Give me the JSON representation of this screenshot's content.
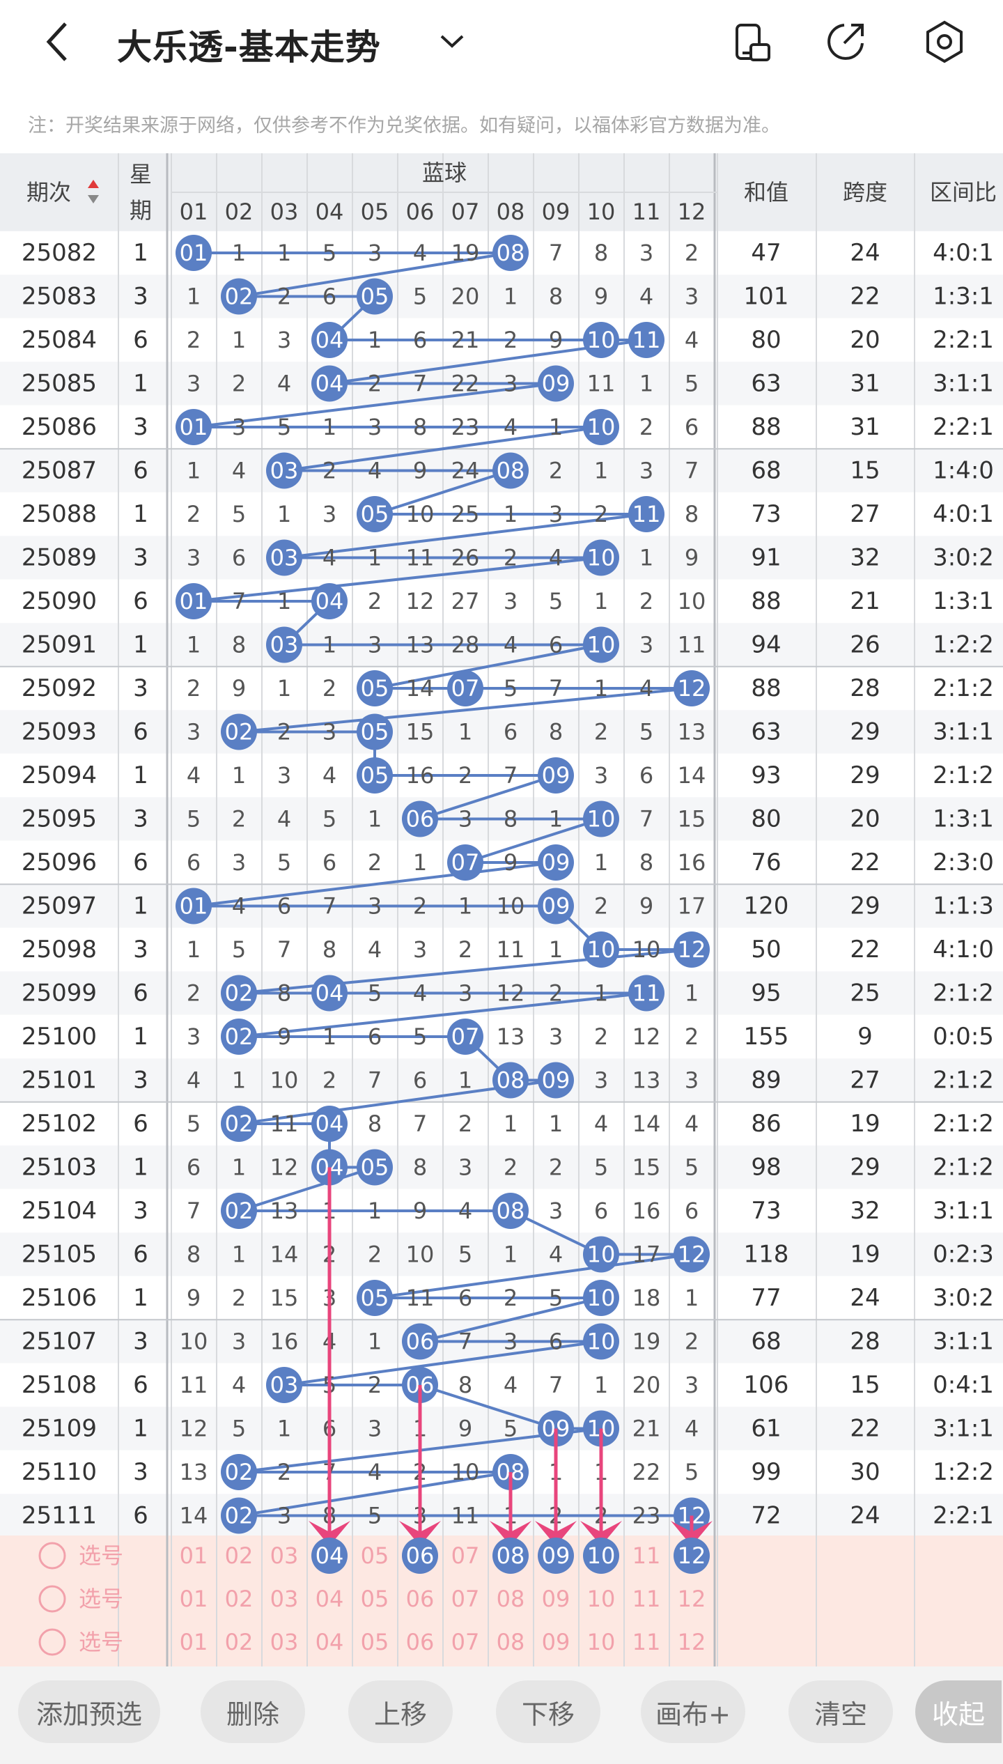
{
  "header": {
    "title": "大乐透-基本走势",
    "back_icon": "back-arrow-icon",
    "dropdown_icon": "chevron-down-icon",
    "icons": [
      "phone-rotate-icon",
      "share-icon",
      "settings-icon"
    ]
  },
  "notice": "注：开奖结果来源于网络，仅供参考不作为兑奖依据。如有疑问，以福体彩官方数据为准。",
  "columns": {
    "period": "期次",
    "weekday": "星期",
    "blue": "蓝球",
    "blue_numbers": [
      "01",
      "02",
      "03",
      "04",
      "05",
      "06",
      "07",
      "08",
      "09",
      "10",
      "11",
      "12"
    ],
    "sum": "和值",
    "span": "跨度",
    "ratio": "区间比"
  },
  "rows": [
    {
      "period": "25082",
      "week": "1",
      "c": [
        "01",
        "1",
        "1",
        "5",
        "3",
        "4",
        "19",
        "08",
        "7",
        "8",
        "3",
        "2"
      ],
      "sum": "47",
      "span": "24",
      "ratio": "4:0:1"
    },
    {
      "period": "25083",
      "week": "3",
      "c": [
        "1",
        "02",
        "2",
        "6",
        "05",
        "5",
        "20",
        "1",
        "8",
        "9",
        "4",
        "3"
      ],
      "sum": "101",
      "span": "22",
      "ratio": "1:3:1"
    },
    {
      "period": "25084",
      "week": "6",
      "c": [
        "2",
        "1",
        "3",
        "04",
        "1",
        "6",
        "21",
        "2",
        "9",
        "10",
        "11",
        "4"
      ],
      "sum": "80",
      "span": "20",
      "ratio": "2:2:1"
    },
    {
      "period": "25085",
      "week": "1",
      "c": [
        "3",
        "2",
        "4",
        "04",
        "2",
        "7",
        "22",
        "3",
        "09",
        "11",
        "1",
        "5"
      ],
      "sum": "63",
      "span": "31",
      "ratio": "3:1:1"
    },
    {
      "period": "25086",
      "week": "3",
      "c": [
        "01",
        "3",
        "5",
        "1",
        "3",
        "8",
        "23",
        "4",
        "1",
        "10",
        "2",
        "6"
      ],
      "sum": "88",
      "span": "31",
      "ratio": "2:2:1"
    },
    {
      "period": "25087",
      "week": "6",
      "c": [
        "1",
        "4",
        "03",
        "2",
        "4",
        "9",
        "24",
        "08",
        "2",
        "1",
        "3",
        "7"
      ],
      "sum": "68",
      "span": "15",
      "ratio": "1:4:0"
    },
    {
      "period": "25088",
      "week": "1",
      "c": [
        "2",
        "5",
        "1",
        "3",
        "05",
        "10",
        "25",
        "1",
        "3",
        "2",
        "11",
        "8"
      ],
      "sum": "73",
      "span": "27",
      "ratio": "4:0:1"
    },
    {
      "period": "25089",
      "week": "3",
      "c": [
        "3",
        "6",
        "03",
        "4",
        "1",
        "11",
        "26",
        "2",
        "4",
        "10",
        "1",
        "9"
      ],
      "sum": "91",
      "span": "32",
      "ratio": "3:0:2"
    },
    {
      "period": "25090",
      "week": "6",
      "c": [
        "01",
        "7",
        "1",
        "04",
        "2",
        "12",
        "27",
        "3",
        "5",
        "1",
        "2",
        "10"
      ],
      "sum": "88",
      "span": "21",
      "ratio": "1:3:1"
    },
    {
      "period": "25091",
      "week": "1",
      "c": [
        "1",
        "8",
        "03",
        "1",
        "3",
        "13",
        "28",
        "4",
        "6",
        "10",
        "3",
        "11"
      ],
      "sum": "94",
      "span": "26",
      "ratio": "1:2:2"
    },
    {
      "period": "25092",
      "week": "3",
      "c": [
        "2",
        "9",
        "1",
        "2",
        "05",
        "14",
        "07",
        "5",
        "7",
        "1",
        "4",
        "12"
      ],
      "sum": "88",
      "span": "28",
      "ratio": "2:1:2"
    },
    {
      "period": "25093",
      "week": "6",
      "c": [
        "3",
        "02",
        "2",
        "3",
        "05",
        "15",
        "1",
        "6",
        "8",
        "2",
        "5",
        "13"
      ],
      "sum": "63",
      "span": "29",
      "ratio": "3:1:1"
    },
    {
      "period": "25094",
      "week": "1",
      "c": [
        "4",
        "1",
        "3",
        "4",
        "05",
        "16",
        "2",
        "7",
        "09",
        "3",
        "6",
        "14"
      ],
      "sum": "93",
      "span": "29",
      "ratio": "2:1:2"
    },
    {
      "period": "25095",
      "week": "3",
      "c": [
        "5",
        "2",
        "4",
        "5",
        "1",
        "06",
        "3",
        "8",
        "1",
        "10",
        "7",
        "15"
      ],
      "sum": "80",
      "span": "20",
      "ratio": "1:3:1"
    },
    {
      "period": "25096",
      "week": "6",
      "c": [
        "6",
        "3",
        "5",
        "6",
        "2",
        "1",
        "07",
        "9",
        "09",
        "1",
        "8",
        "16"
      ],
      "sum": "76",
      "span": "22",
      "ratio": "2:3:0"
    },
    {
      "period": "25097",
      "week": "1",
      "c": [
        "01",
        "4",
        "6",
        "7",
        "3",
        "2",
        "1",
        "10",
        "09",
        "2",
        "9",
        "17"
      ],
      "sum": "120",
      "span": "29",
      "ratio": "1:1:3"
    },
    {
      "period": "25098",
      "week": "3",
      "c": [
        "1",
        "5",
        "7",
        "8",
        "4",
        "3",
        "2",
        "11",
        "1",
        "10",
        "10",
        "12"
      ],
      "sum": "50",
      "span": "22",
      "ratio": "4:1:0"
    },
    {
      "period": "25099",
      "week": "6",
      "c": [
        "2",
        "02",
        "8",
        "04",
        "5",
        "4",
        "3",
        "12",
        "2",
        "1",
        "11",
        "1"
      ],
      "sum": "95",
      "span": "25",
      "ratio": "2:1:2"
    },
    {
      "period": "25100",
      "week": "1",
      "c": [
        "3",
        "02",
        "9",
        "1",
        "6",
        "5",
        "07",
        "13",
        "3",
        "2",
        "12",
        "2"
      ],
      "sum": "155",
      "span": "9",
      "ratio": "0:0:5"
    },
    {
      "period": "25101",
      "week": "3",
      "c": [
        "4",
        "1",
        "10",
        "2",
        "7",
        "6",
        "1",
        "08",
        "09",
        "3",
        "13",
        "3"
      ],
      "sum": "89",
      "span": "27",
      "ratio": "2:1:2"
    },
    {
      "period": "25102",
      "week": "6",
      "c": [
        "5",
        "02",
        "11",
        "04",
        "8",
        "7",
        "2",
        "1",
        "1",
        "4",
        "14",
        "4"
      ],
      "sum": "86",
      "span": "19",
      "ratio": "2:1:2"
    },
    {
      "period": "25103",
      "week": "1",
      "c": [
        "6",
        "1",
        "12",
        "04",
        "05",
        "8",
        "3",
        "2",
        "2",
        "5",
        "15",
        "5"
      ],
      "sum": "98",
      "span": "29",
      "ratio": "2:1:2"
    },
    {
      "period": "25104",
      "week": "3",
      "c": [
        "7",
        "02",
        "13",
        "1",
        "1",
        "9",
        "4",
        "08",
        "3",
        "6",
        "16",
        "6"
      ],
      "sum": "73",
      "span": "32",
      "ratio": "3:1:1"
    },
    {
      "period": "25105",
      "week": "6",
      "c": [
        "8",
        "1",
        "14",
        "2",
        "2",
        "10",
        "5",
        "1",
        "4",
        "10",
        "17",
        "12"
      ],
      "sum": "118",
      "span": "19",
      "ratio": "0:2:3"
    },
    {
      "period": "25106",
      "week": "1",
      "c": [
        "9",
        "2",
        "15",
        "3",
        "05",
        "11",
        "6",
        "2",
        "5",
        "10",
        "18",
        "1"
      ],
      "sum": "77",
      "span": "24",
      "ratio": "3:0:2"
    },
    {
      "period": "25107",
      "week": "3",
      "c": [
        "10",
        "3",
        "16",
        "4",
        "1",
        "06",
        "7",
        "3",
        "6",
        "10",
        "19",
        "2"
      ],
      "sum": "68",
      "span": "28",
      "ratio": "3:1:1"
    },
    {
      "period": "25108",
      "week": "6",
      "c": [
        "11",
        "4",
        "03",
        "5",
        "2",
        "06",
        "8",
        "4",
        "7",
        "1",
        "20",
        "3"
      ],
      "sum": "106",
      "span": "15",
      "ratio": "0:4:1"
    },
    {
      "period": "25109",
      "week": "1",
      "c": [
        "12",
        "5",
        "1",
        "6",
        "3",
        "1",
        "9",
        "5",
        "09",
        "10",
        "21",
        "4"
      ],
      "sum": "61",
      "span": "22",
      "ratio": "3:1:1"
    },
    {
      "period": "25110",
      "week": "3",
      "c": [
        "13",
        "02",
        "2",
        "7",
        "4",
        "2",
        "10",
        "08",
        "1",
        "1",
        "22",
        "5"
      ],
      "sum": "99",
      "span": "30",
      "ratio": "1:2:2"
    },
    {
      "period": "25111",
      "week": "6",
      "c": [
        "14",
        "02",
        "3",
        "8",
        "5",
        "3",
        "11",
        "1",
        "2",
        "2",
        "23",
        "12"
      ],
      "sum": "72",
      "span": "24",
      "ratio": "2:2:1"
    }
  ],
  "select_rows": [
    {
      "label": "选号",
      "selected": [
        "04",
        "06",
        "08",
        "09",
        "10",
        "12"
      ]
    },
    {
      "label": "选号",
      "selected": []
    },
    {
      "label": "选号",
      "selected": []
    }
  ],
  "footer": {
    "buttons": [
      "添加预选",
      "删除",
      "上移",
      "下移",
      "画布+",
      "清空",
      "收起"
    ]
  },
  "colors": {
    "ball": "#5a7fc4",
    "line": "#5a7fc4",
    "arrow": "#e8457c",
    "select_bg": "#fde8e2",
    "select_text": "#f2a1ab"
  }
}
